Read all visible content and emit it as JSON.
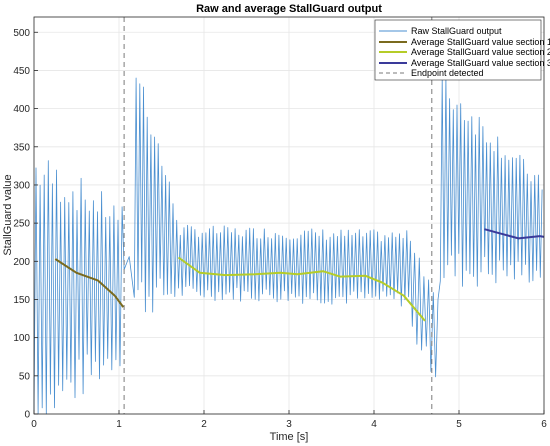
{
  "chart_data": {
    "type": "line",
    "title": "Raw and average StallGuard output",
    "xlabel": "Time [s]",
    "ylabel": "StallGuard value",
    "xlim": [
      0,
      6
    ],
    "ylim": [
      0,
      520
    ],
    "xticks": [
      0,
      1,
      2,
      3,
      4,
      5,
      6
    ],
    "xtick_labels": [
      "0",
      "1",
      "2",
      "3",
      "4",
      "5",
      "6"
    ],
    "yticks": [
      0,
      50,
      100,
      150,
      200,
      250,
      300,
      350,
      400,
      450,
      500
    ],
    "ytick_labels": [
      "0",
      "50",
      "100",
      "150",
      "200",
      "250",
      "300",
      "350",
      "400",
      "450",
      "500"
    ],
    "grid": true,
    "legend_position": "top-right",
    "raw": {
      "name": "Raw StallGuard output",
      "color": "#4a8fd0",
      "segments": [
        {
          "t_start": 0.0,
          "t_end": 1.06,
          "cycles": 22,
          "lo_start": 5,
          "lo_end": 85,
          "hi_start": 320,
          "hi_end": 255
        },
        {
          "t_start": 1.06,
          "t_end": 1.18,
          "cycles": 1,
          "lo_start": 190,
          "lo_end": 205,
          "hi_start": 200,
          "hi_end": 210
        },
        {
          "t_start": 1.18,
          "t_end": 1.7,
          "cycles": 12,
          "lo_start": 155,
          "lo_end": 160,
          "hi_start": 465,
          "hi_end": 250
        },
        {
          "t_start": 1.7,
          "t_end": 4.45,
          "cycles": 64,
          "lo_start": 160,
          "lo_end": 150,
          "hi_start": 240,
          "hi_end": 232
        },
        {
          "t_start": 4.45,
          "t_end": 4.78,
          "cycles": 6,
          "lo_start": 110,
          "lo_end": 45,
          "hi_start": 225,
          "hi_end": 140
        },
        {
          "t_start": 4.78,
          "t_end": 6.0,
          "cycles": 28,
          "lo_start": 190,
          "lo_end": 185,
          "hi_start": 430,
          "hi_end": 295
        }
      ]
    },
    "series": [
      {
        "name": "Average StallGuard value section 1",
        "color": "#7a6a1e",
        "x": [
          0.25,
          0.5,
          0.75,
          0.95,
          1.05
        ],
        "y": [
          203,
          185,
          175,
          155,
          140
        ]
      },
      {
        "name": "Average StallGuard value section 2",
        "color": "#b5cc28",
        "x": [
          1.7,
          1.95,
          2.25,
          2.6,
          2.9,
          3.1,
          3.4,
          3.6,
          3.9,
          4.1,
          4.35,
          4.6
        ],
        "y": [
          205,
          185,
          182,
          183,
          185,
          183,
          187,
          180,
          181,
          172,
          155,
          122
        ]
      },
      {
        "name": "Average StallGuard value section 3",
        "color": "#3a3a9a",
        "x": [
          5.3,
          5.5,
          5.7,
          5.95,
          6.0
        ],
        "y": [
          242,
          236,
          230,
          233,
          232
        ]
      }
    ],
    "endpoints": {
      "name": "Endpoint detected",
      "color": "#7a7a7a",
      "x": [
        1.06,
        4.68
      ]
    }
  }
}
